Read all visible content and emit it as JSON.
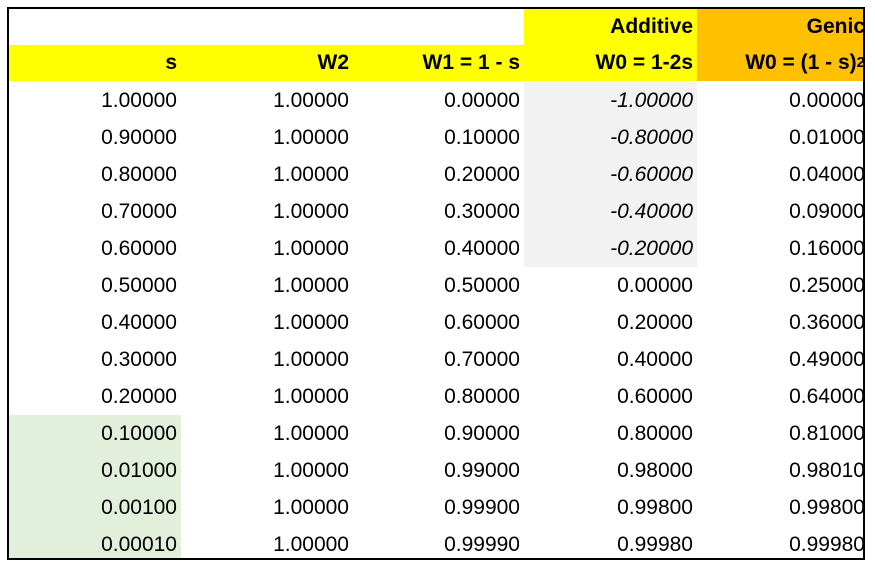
{
  "table": {
    "group_headers": {
      "additive": "Additive",
      "genic": "Genic"
    },
    "columns": [
      "s",
      "W2",
      "W1 = 1 - s",
      "W0 = 1-2s",
      "W0 = (1 - s)"
    ],
    "genic_superscript": "2",
    "rows": [
      [
        "1.00000",
        "1.00000",
        "0.00000",
        "-1.00000",
        "0.00000"
      ],
      [
        "0.90000",
        "1.00000",
        "0.10000",
        "-0.80000",
        "0.01000"
      ],
      [
        "0.80000",
        "1.00000",
        "0.20000",
        "-0.60000",
        "0.04000"
      ],
      [
        "0.70000",
        "1.00000",
        "0.30000",
        "-0.40000",
        "0.09000"
      ],
      [
        "0.60000",
        "1.00000",
        "0.40000",
        "-0.20000",
        "0.16000"
      ],
      [
        "0.50000",
        "1.00000",
        "0.50000",
        "0.00000",
        "0.25000"
      ],
      [
        "0.40000",
        "1.00000",
        "0.60000",
        "0.20000",
        "0.36000"
      ],
      [
        "0.30000",
        "1.00000",
        "0.70000",
        "0.40000",
        "0.49000"
      ],
      [
        "0.20000",
        "1.00000",
        "0.80000",
        "0.60000",
        "0.64000"
      ],
      [
        "0.10000",
        "1.00000",
        "0.90000",
        "0.80000",
        "0.81000"
      ],
      [
        "0.01000",
        "1.00000",
        "0.99000",
        "0.98000",
        "0.98010"
      ],
      [
        "0.00100",
        "1.00000",
        "0.99900",
        "0.99800",
        "0.99800"
      ],
      [
        "0.00010",
        "1.00000",
        "0.99990",
        "0.99980",
        "0.99980"
      ]
    ],
    "colors": {
      "header_yellow": "#ffff00",
      "header_orange": "#ffc000",
      "negative_grey": "#f2f2f2",
      "small_s_green": "#e2efda"
    }
  }
}
